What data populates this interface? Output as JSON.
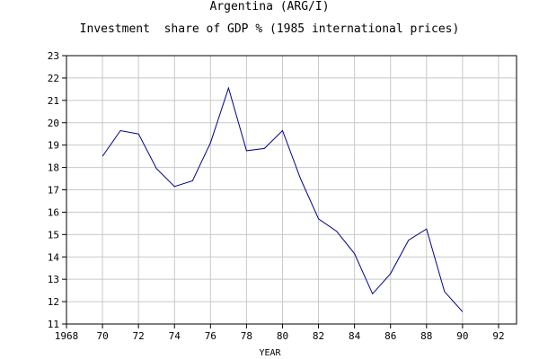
{
  "chart_data": {
    "type": "line",
    "title": "Argentina (ARG/I)",
    "subtitle": "Investment  share of GDP % (1985 international prices)",
    "xlabel": "YEAR",
    "ylabel": "",
    "xlim": [
      1968,
      1993
    ],
    "ylim": [
      11,
      23
    ],
    "xticks": [
      1968,
      1970,
      1972,
      1974,
      1976,
      1978,
      1980,
      1982,
      1984,
      1986,
      1988,
      1990,
      1992
    ],
    "xtick_labels": [
      "1968",
      "70",
      "72",
      "74",
      "76",
      "78",
      "80",
      "82",
      "84",
      "86",
      "88",
      "90",
      "92"
    ],
    "yticks": [
      11,
      12,
      13,
      14,
      15,
      16,
      17,
      18,
      19,
      20,
      21,
      22,
      23
    ],
    "ytick_labels": [
      "11",
      "12",
      "13",
      "14",
      "15",
      "16",
      "17",
      "18",
      "19",
      "20",
      "21",
      "22",
      "23"
    ],
    "grid": true,
    "colors": {
      "line": "#00008b",
      "grid": "#c8c8c8",
      "axis": "#000000"
    },
    "series": [
      {
        "x": [
          1970,
          1971,
          1972,
          1973,
          1974,
          1975,
          1976,
          1977,
          1978,
          1979,
          1980,
          1981,
          1982,
          1983,
          1984,
          1985,
          1986,
          1987,
          1988,
          1989,
          1990
        ],
        "y": [
          18.5,
          19.65,
          19.5,
          17.95,
          17.15,
          17.4,
          19.1,
          21.55,
          18.75,
          18.85,
          19.65,
          17.5,
          15.7,
          15.15,
          14.15,
          12.35,
          13.25,
          14.75,
          15.25,
          12.45,
          11.55
        ]
      }
    ]
  }
}
